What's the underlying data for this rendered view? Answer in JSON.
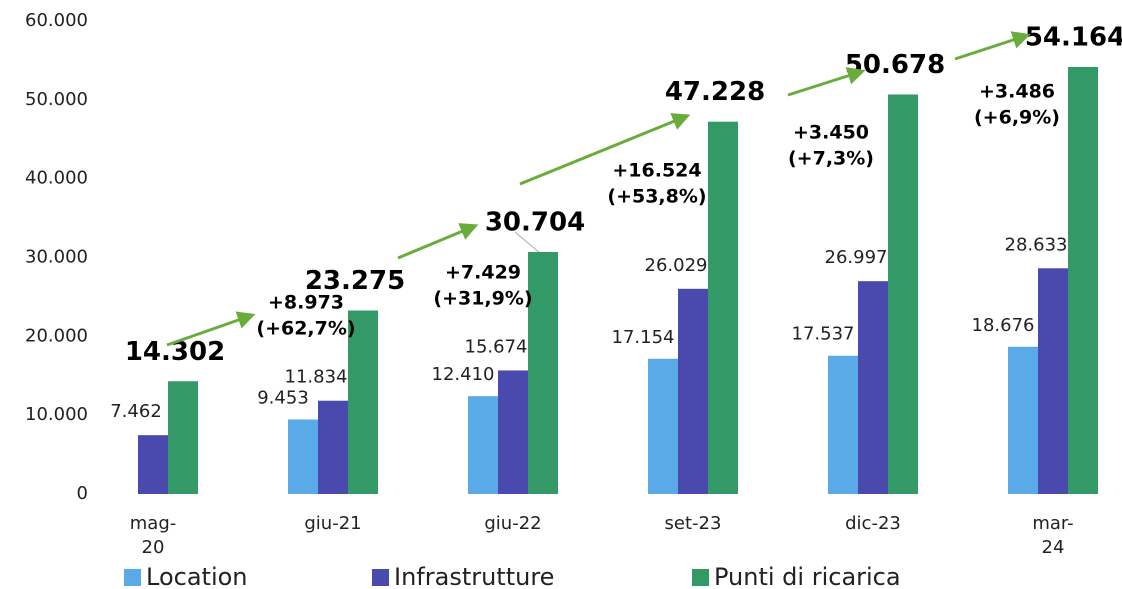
{
  "chart_data": {
    "type": "bar",
    "categories": [
      "mag-20",
      "giu-21",
      "giu-22",
      "set-23",
      "dic-23",
      "mar-24"
    ],
    "series": [
      {
        "name": "Location",
        "color": "#5aaae8",
        "values": [
          null,
          9453,
          12410,
          17154,
          17537,
          18676
        ],
        "value_labels": [
          null,
          "9.453",
          "12.410",
          "17.154",
          "17.537",
          "18.676"
        ]
      },
      {
        "name": "Infrastrutture",
        "color": "#4a4aae",
        "values": [
          7462,
          11834,
          15674,
          26029,
          26997,
          28633
        ],
        "value_labels": [
          "7.462",
          "11.834",
          "15.674",
          "26.029",
          "26.997",
          "28.633"
        ]
      },
      {
        "name": "Punti di ricarica",
        "color": "#339966",
        "values": [
          14302,
          23275,
          30704,
          47228,
          50678,
          54164
        ],
        "value_labels": [
          "14.302",
          "23.275",
          "30.704",
          "47.228",
          "50.678",
          "54.164"
        ]
      }
    ],
    "annotations": [
      {
        "lines": [
          "+8.973",
          "(+62,7%)"
        ]
      },
      {
        "lines": [
          "+7.429",
          "(+31,9%)"
        ]
      },
      {
        "lines": [
          "+16.524",
          "(+53,8%)"
        ]
      },
      {
        "lines": [
          "+3.450",
          "(+7,3%)"
        ]
      },
      {
        "lines": [
          "+3.486",
          "(+6,9%)"
        ]
      }
    ],
    "ylim": [
      0,
      60000
    ],
    "yticks": [
      0,
      {
        "value": 10000,
        "label": "10.000"
      },
      {
        "value": 20000,
        "label": "20.000"
      },
      {
        "value": 30000,
        "label": "30.000"
      },
      {
        "value": 40000,
        "label": "40.000"
      },
      {
        "value": 50000,
        "label": "50.000"
      },
      {
        "value": 60000,
        "label": "60.000"
      }
    ],
    "legend": "bottom"
  }
}
